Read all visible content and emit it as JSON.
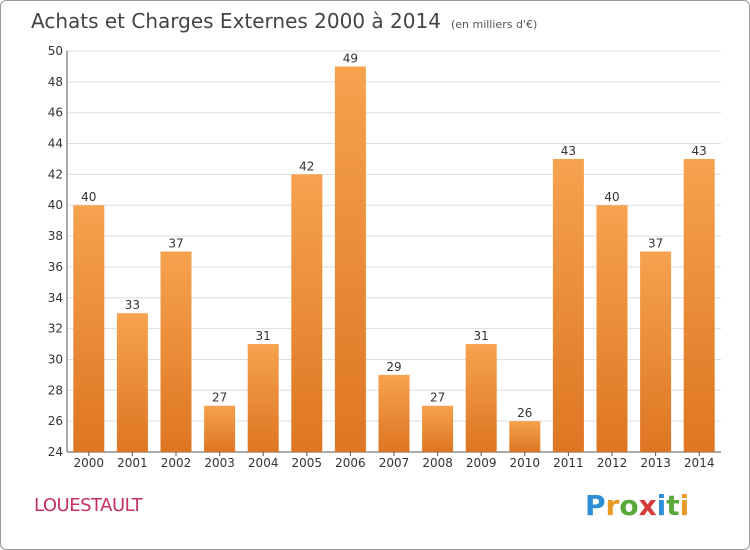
{
  "title": "Achats et Charges Externes 2000 à 2014",
  "subtitle": "(en milliers d'€)",
  "location": "LOUESTAULT",
  "logo_text": "Proxiti",
  "colors": {
    "bar_light": "#f6a24e",
    "bar_dark": "#dd7622",
    "grid": "#dddddd",
    "location": "#c43060"
  },
  "chart_data": {
    "type": "bar",
    "categories": [
      "2000",
      "2001",
      "2002",
      "2003",
      "2004",
      "2005",
      "2006",
      "2007",
      "2008",
      "2009",
      "2010",
      "2011",
      "2012",
      "2013",
      "2014"
    ],
    "values": [
      40,
      33,
      37,
      27,
      31,
      42,
      49,
      29,
      27,
      31,
      26,
      43,
      40,
      37,
      43
    ],
    "ylim": [
      24,
      50
    ],
    "yticks": [
      24,
      26,
      28,
      30,
      32,
      34,
      36,
      38,
      40,
      42,
      44,
      46,
      48,
      50
    ],
    "grid": true,
    "data_labels": true
  }
}
